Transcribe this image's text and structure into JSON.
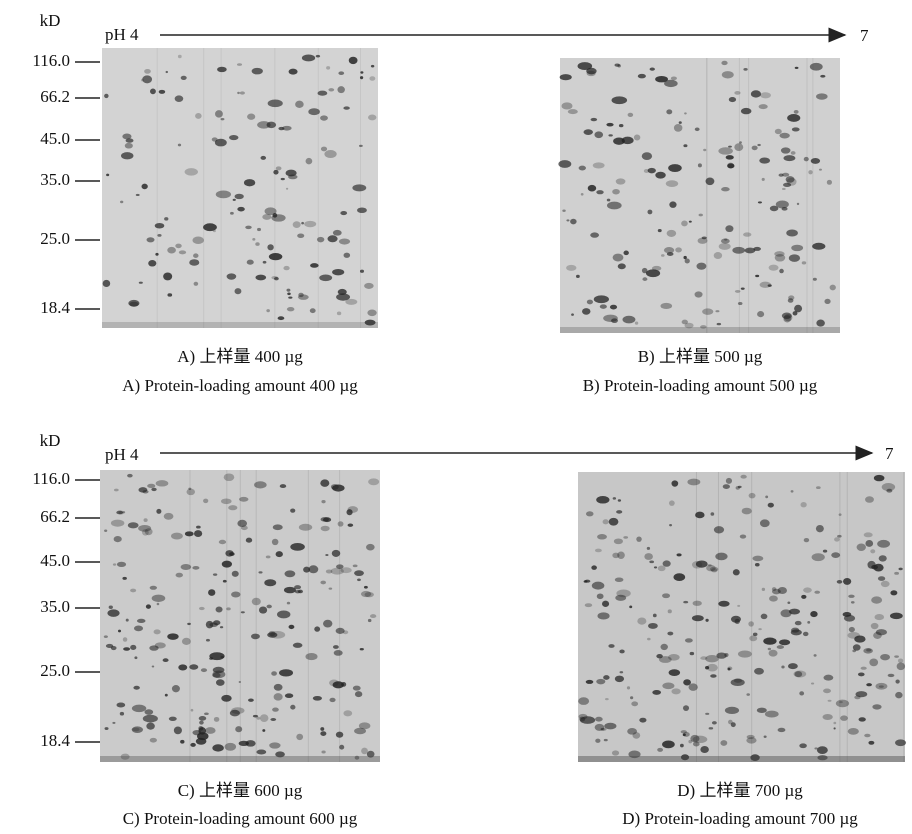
{
  "rows": [
    {
      "axis_unit": "kD",
      "ph_start": "pH 4",
      "ph_end": "7",
      "markers": [
        "116.0",
        "66.2",
        "45.0",
        "35.0",
        "25.0",
        "18.4"
      ],
      "panels": [
        {
          "caption_cn": "A) 上样量 400 µg",
          "caption_en": "A) Protein-loading amount 400 µg"
        },
        {
          "caption_cn": "B) 上样量 500 µg",
          "caption_en": "B) Protein-loading amount 500 µg"
        }
      ]
    },
    {
      "axis_unit": "kD",
      "ph_start": "pH 4",
      "ph_end": "7",
      "markers": [
        "116.0",
        "66.2",
        "45.0",
        "35.0",
        "25.0",
        "18.4"
      ],
      "panels": [
        {
          "caption_cn": "C) 上样量 600 µg",
          "caption_en": "C) Protein-loading amount 600 µg"
        },
        {
          "caption_cn": "D) 上样量 700 µg",
          "caption_en": "D) Protein-loading amount 700 µg"
        }
      ]
    }
  ]
}
